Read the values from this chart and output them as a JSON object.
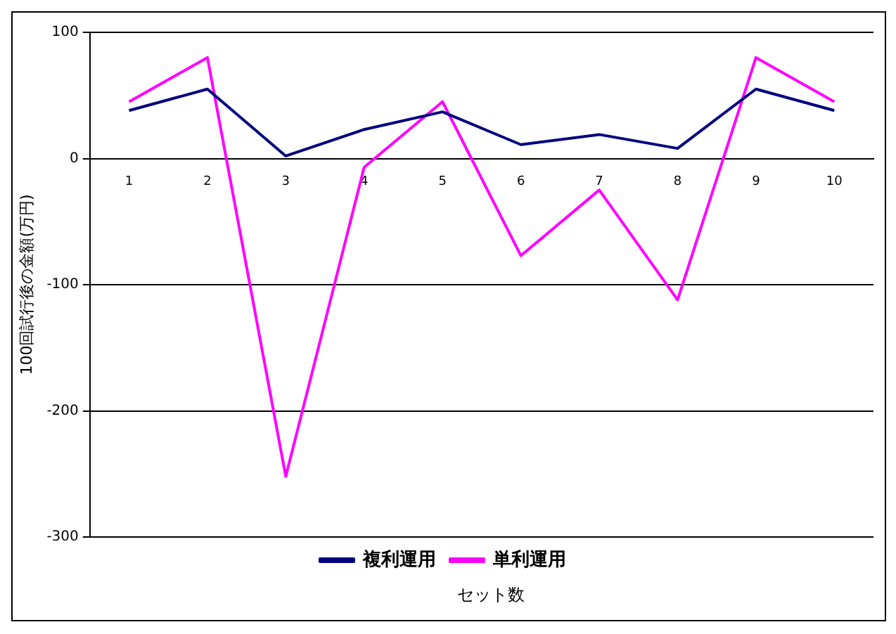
{
  "chart_data": {
    "type": "line",
    "xlabel": "セット数",
    "ylabel": "100回試行後の金額(万円)",
    "categories": [
      "1",
      "2",
      "3",
      "4",
      "5",
      "6",
      "7",
      "8",
      "9",
      "10"
    ],
    "series": [
      {
        "name": "複利運用",
        "color": "#000080",
        "values": [
          38,
          55,
          2,
          23,
          37,
          11,
          19,
          8,
          55,
          38
        ]
      },
      {
        "name": "単利運用",
        "color": "#ff00ff",
        "values": [
          45,
          80,
          -252,
          -7,
          45,
          -77,
          -25,
          -112,
          80,
          45
        ]
      }
    ],
    "ylim": [
      -300,
      100
    ],
    "yticks": [
      -300,
      -200,
      -100,
      0,
      100
    ],
    "grid": "y",
    "legend": "bottom",
    "marker": "none",
    "line_style": "solid"
  }
}
